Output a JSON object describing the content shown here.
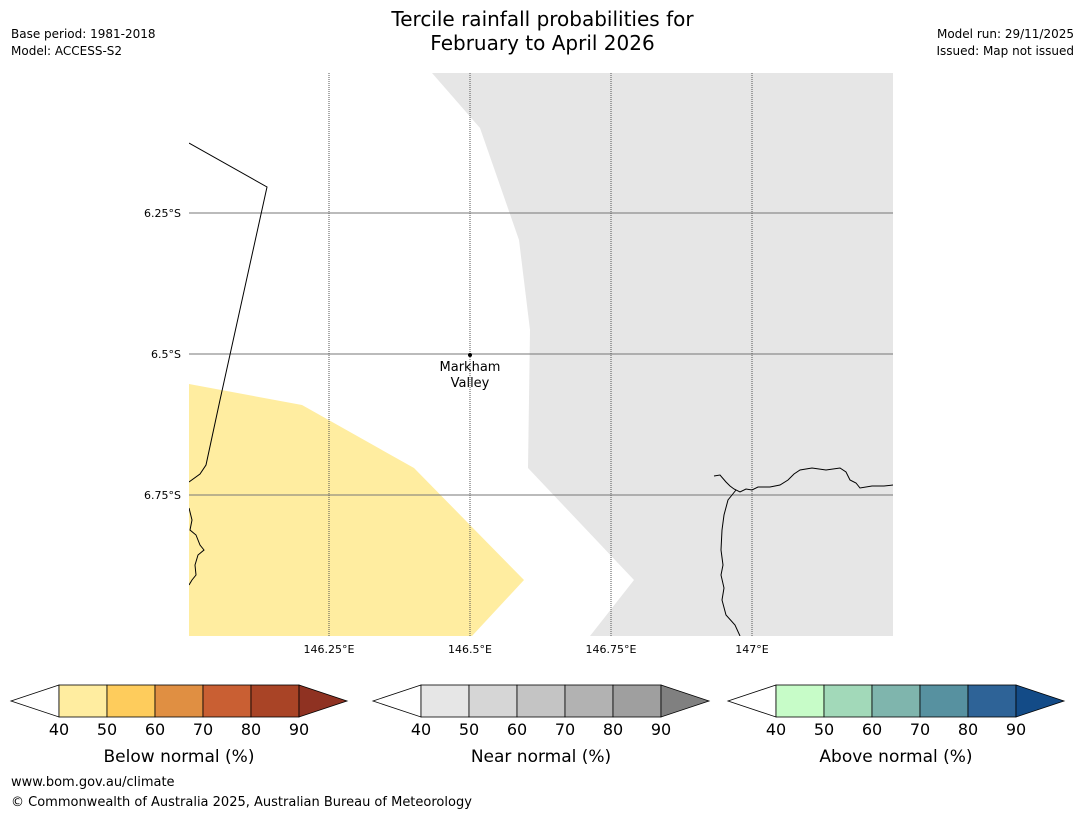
{
  "title_line1": "Tercile rainfall probabilities for",
  "title_line2": "February to April 2026",
  "meta_left": {
    "base_period": "Base period: 1981-2018",
    "model": "Model: ACCESS-S2"
  },
  "meta_right": {
    "model_run": "Model run: 29/11/2025",
    "issued": "Issued: Map not issued"
  },
  "map": {
    "lat_labels": [
      "6.25°S",
      "6.5°S",
      "6.75°S"
    ],
    "lon_labels": [
      "146.25°E",
      "146.5°E",
      "146.75°E",
      "147°E"
    ],
    "place": {
      "name_line1": "Markham",
      "name_line2": "Valley"
    },
    "regions": [
      {
        "category": "Below normal",
        "probability_band": "40-50",
        "color": "#ffeda0"
      },
      {
        "category": "Near normal",
        "probability_band": "40-50",
        "color": "#e6e6e6"
      }
    ]
  },
  "legends": [
    {
      "title": "Below normal (%)",
      "ticks": [
        "40",
        "50",
        "60",
        "70",
        "80",
        "90"
      ],
      "colors": [
        "#ffeda0",
        "#fecc5c",
        "#e08f42",
        "#c95f33",
        "#a94426"
      ],
      "low_color": "#ffffff",
      "high_color": "#8f3222"
    },
    {
      "title": "Near normal (%)",
      "ticks": [
        "40",
        "50",
        "60",
        "70",
        "80",
        "90"
      ],
      "colors": [
        "#e6e6e6",
        "#d6d6d6",
        "#c4c4c4",
        "#b2b2b2",
        "#9f9f9f"
      ],
      "low_color": "#ffffff",
      "high_color": "#808080"
    },
    {
      "title": "Above normal (%)",
      "ticks": [
        "40",
        "50",
        "60",
        "70",
        "80",
        "90"
      ],
      "colors": [
        "#c7fcc8",
        "#a2d9b9",
        "#7fb5ad",
        "#5791a0",
        "#2e6397"
      ],
      "low_color": "#ffffff",
      "high_color": "#134b87"
    }
  ],
  "footer": {
    "url": "www.bom.gov.au/climate",
    "copyright": "© Commonwealth of Australia 2025, Australian Bureau of Meteorology"
  }
}
